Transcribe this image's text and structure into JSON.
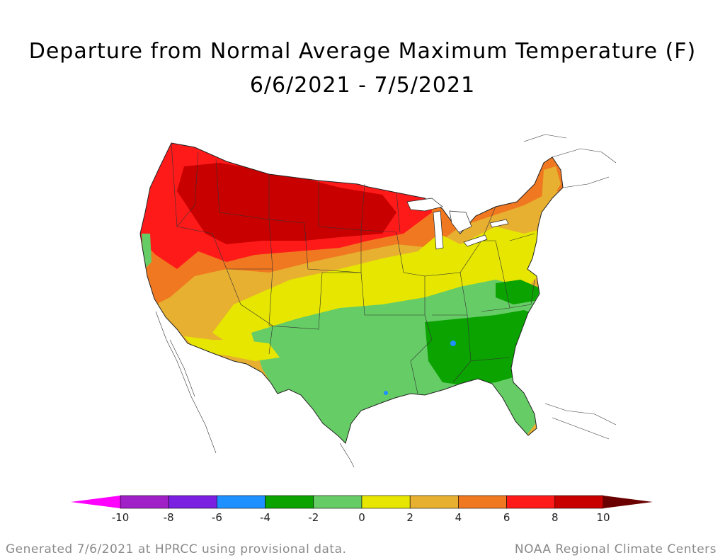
{
  "title_line1": "Departure from Normal Average Maximum Temperature (F)",
  "title_line2": "6/6/2021 - 7/5/2021",
  "legend": {
    "ticks": [
      "-10",
      "-8",
      "-6",
      "-4",
      "-2",
      "0",
      "2",
      "4",
      "6",
      "8",
      "10"
    ],
    "bins": [
      {
        "min": -10,
        "max": -8,
        "color": "#a020c8"
      },
      {
        "min": -8,
        "max": -6,
        "color": "#7b1fe0"
      },
      {
        "min": -6,
        "max": -4,
        "color": "#1e90ff"
      },
      {
        "min": -4,
        "max": -2,
        "color": "#0aa300"
      },
      {
        "min": -2,
        "max": 0,
        "color": "#66cc66"
      },
      {
        "min": 0,
        "max": 2,
        "color": "#e6e600"
      },
      {
        "min": 2,
        "max": 4,
        "color": "#e8b030"
      },
      {
        "min": 4,
        "max": 6,
        "color": "#f07820"
      },
      {
        "min": 6,
        "max": 8,
        "color": "#ff1a1a"
      },
      {
        "min": 8,
        "max": 10,
        "color": "#c80000"
      }
    ],
    "under_color": "#ff00ff",
    "over_color": "#6b0000"
  },
  "footer_left": "Generated 7/6/2021 at HPRCC using provisional data.",
  "footer_right": "NOAA Regional Climate Centers"
}
